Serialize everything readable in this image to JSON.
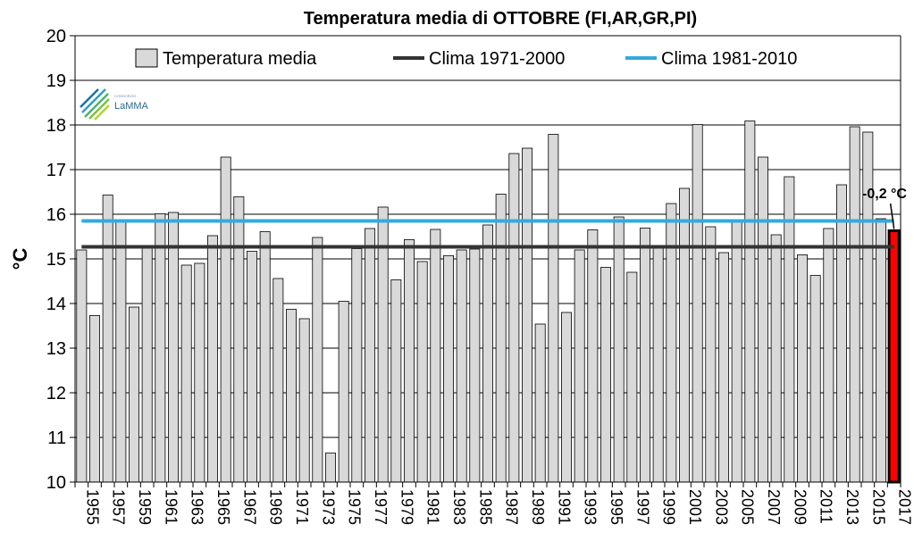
{
  "chart_data": {
    "type": "bar",
    "title": "Temperatura media di OTTOBRE (FI,AR,GR,PI)",
    "ylabel": "°C",
    "xlabel": "",
    "ylim": [
      10,
      20
    ],
    "yticks": [
      10,
      11,
      12,
      13,
      14,
      15,
      16,
      17,
      18,
      19,
      20
    ],
    "x_tick_labels": [
      "1955",
      "1957",
      "1959",
      "1961",
      "1963",
      "1965",
      "1967",
      "1969",
      "1971",
      "1973",
      "1975",
      "1977",
      "1979",
      "1981",
      "1983",
      "1985",
      "1987",
      "1989",
      "1991",
      "1993",
      "1995",
      "1997",
      "1999",
      "2001",
      "2003",
      "2005",
      "2007",
      "2009",
      "2011",
      "2013",
      "2015",
      "2017"
    ],
    "years": [
      1955,
      1956,
      1957,
      1958,
      1959,
      1960,
      1961,
      1962,
      1963,
      1964,
      1965,
      1966,
      1967,
      1968,
      1969,
      1970,
      1971,
      1972,
      1973,
      1974,
      1975,
      1976,
      1977,
      1978,
      1979,
      1980,
      1981,
      1982,
      1983,
      1984,
      1985,
      1986,
      1987,
      1988,
      1989,
      1990,
      1991,
      1992,
      1993,
      1994,
      1995,
      1996,
      1997,
      1998,
      1999,
      2000,
      2001,
      2002,
      2003,
      2004,
      2005,
      2006,
      2007,
      2008,
      2009,
      2010,
      2011,
      2012,
      2013,
      2014,
      2015,
      2016,
      2017
    ],
    "series": [
      {
        "name": "Temperatura media",
        "color": "#d9d9d9",
        "highlight_color": "#ff0000",
        "values": [
          15.2,
          13.73,
          16.43,
          15.84,
          13.92,
          15.24,
          16.01,
          16.04,
          14.86,
          14.9,
          15.52,
          17.28,
          16.39,
          15.17,
          15.61,
          14.56,
          13.87,
          13.66,
          15.48,
          10.65,
          14.05,
          15.23,
          15.68,
          16.16,
          14.53,
          15.43,
          14.94,
          15.66,
          15.07,
          15.2,
          15.22,
          15.76,
          16.45,
          17.36,
          17.48,
          13.54,
          17.79,
          13.8,
          15.2,
          15.65,
          14.81,
          15.94,
          14.7,
          15.69,
          15.3,
          16.24,
          16.58,
          18.01,
          15.72,
          15.14,
          15.88,
          18.09,
          17.28,
          15.54,
          16.84,
          15.09,
          14.63,
          15.68,
          16.66,
          17.96,
          17.84,
          15.9,
          15.63
        ]
      },
      {
        "name": "Clima 1971-2000",
        "color": "#333333",
        "value": 15.27
      },
      {
        "name": "Clima 1981-2010",
        "color": "#33aadd",
        "value": 15.85
      }
    ],
    "highlight_year": 2017,
    "annotation": "-0,2 °C",
    "legend_position": "top",
    "grid": "horizontal"
  },
  "logo": {
    "text": "LaMMA",
    "small": "CONSORZIO",
    "colors": [
      "#1b6fa8",
      "#2c9cd6",
      "#7cc242",
      "#b3d334"
    ]
  }
}
